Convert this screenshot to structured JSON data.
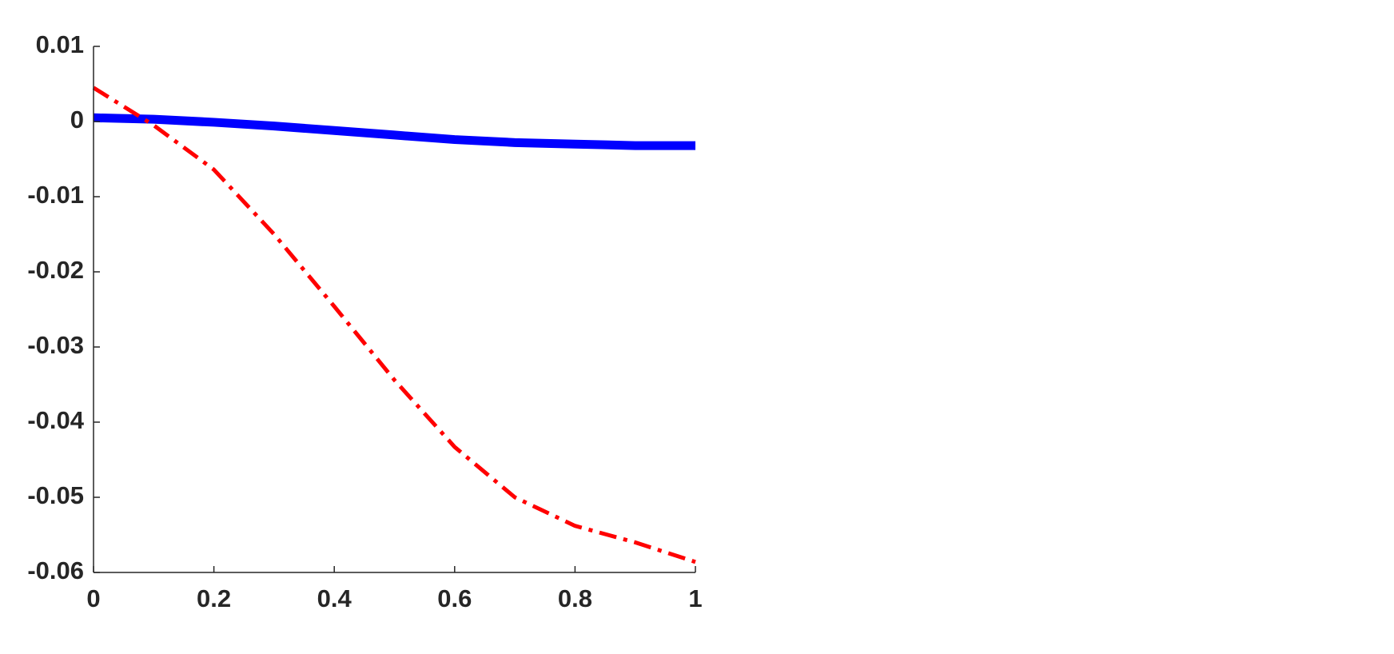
{
  "chart_data": {
    "type": "line",
    "x": [
      0,
      0.1,
      0.2,
      0.3,
      0.4,
      0.5,
      0.6,
      0.7,
      0.8,
      0.9,
      1
    ],
    "series": [
      {
        "color": "#0000ff",
        "linestyle": "solid",
        "linewidth": 11,
        "values": [
          0.0005,
          0.0003,
          -0.0001,
          -0.0006,
          -0.0012,
          -0.0018,
          -0.0024,
          -0.0028,
          -0.003,
          -0.0032,
          -0.0032
        ]
      },
      {
        "color": "#ff0000",
        "linestyle": "dashdot",
        "linewidth": 5,
        "values": [
          0.0045,
          -0.0005,
          -0.0064,
          -0.015,
          -0.0246,
          -0.0344,
          -0.0433,
          -0.05,
          -0.0538,
          -0.056,
          -0.0586
        ]
      }
    ],
    "xlim": [
      0,
      1
    ],
    "xticks": [
      0,
      0.2,
      0.4,
      0.6,
      0.8,
      1
    ],
    "ylim": [
      -0.06,
      0.01
    ],
    "yticks": [
      0.01,
      0,
      -0.01,
      -0.02,
      -0.03,
      -0.04,
      -0.05,
      -0.06
    ],
    "grid": false
  }
}
